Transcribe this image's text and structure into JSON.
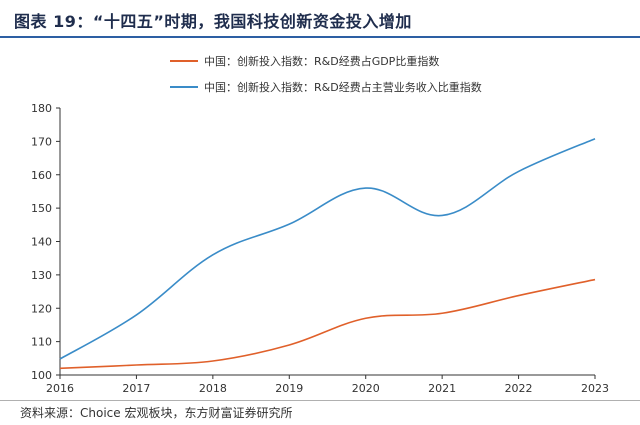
{
  "title": "图表 19：“十四五”时期，我国科技创新资金投入增加",
  "source": "资料来源：Choice 宏观板块，东方财富证券研究所",
  "chart_data": {
    "type": "line",
    "title": "图表 19：“十四五”时期，我国科技创新资金投入增加",
    "xlabel": "",
    "ylabel": "",
    "x": [
      "2016",
      "2017",
      "2018",
      "2019",
      "2020",
      "2021",
      "2022",
      "2023"
    ],
    "ylim": [
      100,
      180
    ],
    "yticks": [
      100,
      110,
      120,
      130,
      140,
      150,
      160,
      170,
      180
    ],
    "grid": false,
    "legend_position": "top",
    "series": [
      {
        "name": "中国：创新投入指数：R&D经费占GDP比重指数",
        "color": "#e0602a",
        "values": [
          102.0,
          103.0,
          104.2,
          109.0,
          117.0,
          118.5,
          123.8,
          128.6
        ]
      },
      {
        "name": "中国：创新投入指数：R&D经费占主营业务收入比重指数",
        "color": "#3a8cc8",
        "values": [
          104.8,
          118.0,
          136.0,
          145.2,
          156.0,
          147.8,
          161.0,
          170.8
        ]
      }
    ]
  }
}
